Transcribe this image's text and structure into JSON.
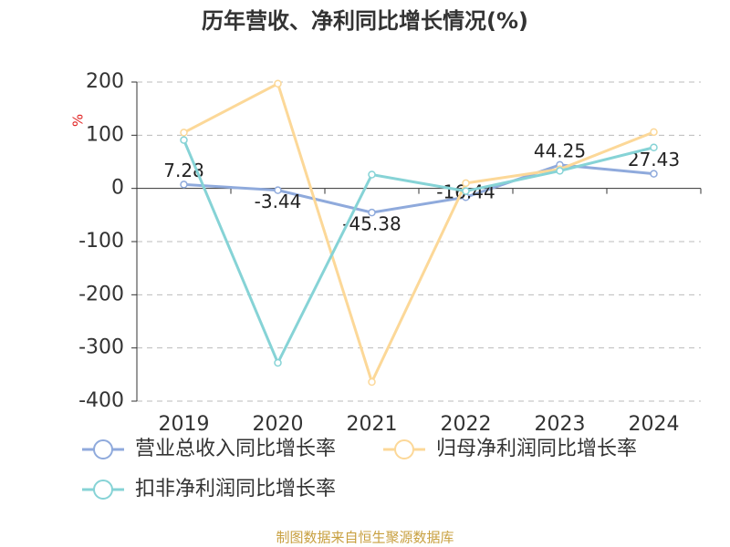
{
  "chart_data": {
    "type": "line",
    "title": "历年营收、净利同比增长情况(%)",
    "y_label": "%",
    "categories": [
      "2019",
      "2020",
      "2021",
      "2022",
      "2023",
      "2024"
    ],
    "series": [
      {
        "name": "营业总收入同比增长率",
        "color": "#8faadc",
        "values": [
          7.28,
          -3.44,
          -45.38,
          -16.44,
          44.25,
          27.43
        ],
        "show_labels": true
      },
      {
        "name": "归母净利润同比增长率",
        "color": "#fcd898",
        "values": [
          105,
          197,
          -364,
          10,
          36,
          106
        ],
        "show_labels": false
      },
      {
        "name": "扣非净利润同比增长率",
        "color": "#86d3d6",
        "values": [
          91,
          -328,
          26,
          -5,
          33,
          77
        ],
        "show_labels": false
      }
    ],
    "ylim": [
      -400,
      200
    ],
    "yticks": [
      -400,
      -300,
      -200,
      -100,
      0,
      100,
      200
    ],
    "grid": true,
    "source": "制图数据来自恒生聚源数据库"
  }
}
